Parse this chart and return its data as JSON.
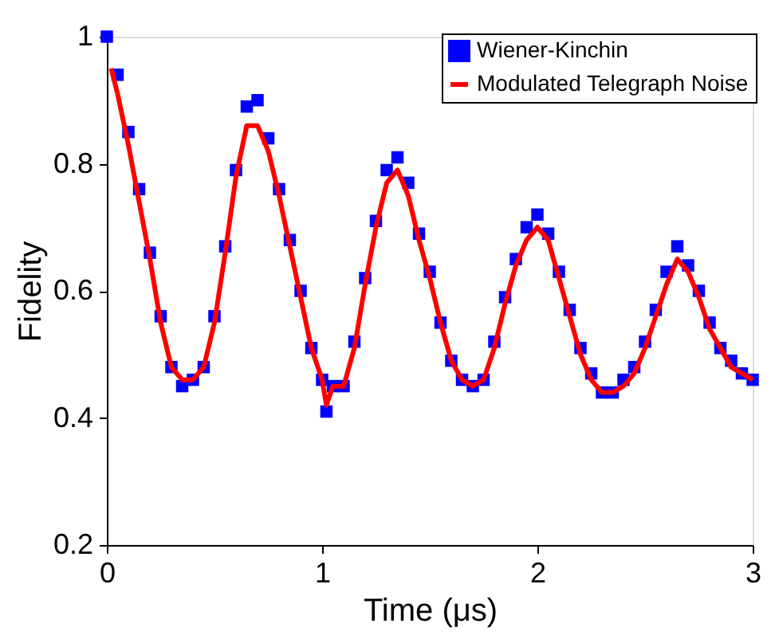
{
  "chart_data": {
    "type": "scatter",
    "xlabel": "Time (μs)",
    "ylabel": "Fidelity",
    "xlim": [
      0,
      3
    ],
    "ylim": [
      0.2,
      1
    ],
    "xticks": [
      0,
      1,
      2,
      3
    ],
    "yticks": [
      0.2,
      0.4,
      0.6,
      0.8,
      1
    ],
    "grid": false,
    "legend": "top right",
    "series": [
      {
        "name": "Wiener-Kinchin",
        "marker": "square",
        "color": "#0000ff",
        "x": [
          0.0,
          0.05,
          0.1,
          0.15,
          0.2,
          0.25,
          0.3,
          0.35,
          0.4,
          0.45,
          0.5,
          0.55,
          0.6,
          0.65,
          0.7,
          0.75,
          0.8,
          0.85,
          0.9,
          0.95,
          1.0,
          1.02,
          1.05,
          1.1,
          1.15,
          1.2,
          1.25,
          1.3,
          1.35,
          1.4,
          1.45,
          1.5,
          1.55,
          1.6,
          1.65,
          1.7,
          1.75,
          1.8,
          1.85,
          1.9,
          1.95,
          2.0,
          2.05,
          2.1,
          2.15,
          2.2,
          2.25,
          2.3,
          2.35,
          2.4,
          2.45,
          2.5,
          2.55,
          2.6,
          2.65,
          2.7,
          2.75,
          2.8,
          2.85,
          2.9,
          2.95,
          3.0
        ],
        "values": [
          1.0,
          0.94,
          0.85,
          0.76,
          0.66,
          0.56,
          0.48,
          0.45,
          0.46,
          0.48,
          0.56,
          0.67,
          0.79,
          0.89,
          0.9,
          0.84,
          0.76,
          0.68,
          0.6,
          0.51,
          0.46,
          0.41,
          0.45,
          0.45,
          0.52,
          0.62,
          0.71,
          0.79,
          0.81,
          0.77,
          0.69,
          0.63,
          0.55,
          0.49,
          0.46,
          0.45,
          0.46,
          0.52,
          0.59,
          0.65,
          0.7,
          0.72,
          0.69,
          0.63,
          0.57,
          0.51,
          0.47,
          0.44,
          0.44,
          0.46,
          0.48,
          0.52,
          0.57,
          0.63,
          0.67,
          0.64,
          0.6,
          0.55,
          0.51,
          0.49,
          0.47,
          0.46
        ]
      },
      {
        "name": "Modulated Telegraph Noise",
        "type": "line",
        "marker": "none",
        "line_style": "solid",
        "color": "#ff0000",
        "x": [
          0.02,
          0.05,
          0.1,
          0.15,
          0.2,
          0.25,
          0.3,
          0.35,
          0.4,
          0.45,
          0.5,
          0.55,
          0.6,
          0.65,
          0.7,
          0.75,
          0.8,
          0.85,
          0.9,
          0.95,
          1.0,
          1.02,
          1.05,
          1.1,
          1.15,
          1.2,
          1.25,
          1.3,
          1.35,
          1.4,
          1.45,
          1.5,
          1.55,
          1.6,
          1.65,
          1.7,
          1.75,
          1.8,
          1.85,
          1.9,
          1.95,
          2.0,
          2.05,
          2.1,
          2.15,
          2.2,
          2.25,
          2.3,
          2.35,
          2.4,
          2.45,
          2.5,
          2.55,
          2.6,
          2.65,
          2.7,
          2.75,
          2.8,
          2.85,
          2.9,
          2.95,
          3.0
        ],
        "values": [
          0.95,
          0.91,
          0.83,
          0.74,
          0.65,
          0.55,
          0.48,
          0.46,
          0.46,
          0.48,
          0.55,
          0.66,
          0.78,
          0.86,
          0.86,
          0.82,
          0.75,
          0.67,
          0.59,
          0.51,
          0.46,
          0.42,
          0.45,
          0.45,
          0.51,
          0.61,
          0.7,
          0.77,
          0.79,
          0.75,
          0.68,
          0.62,
          0.55,
          0.49,
          0.46,
          0.45,
          0.46,
          0.51,
          0.58,
          0.64,
          0.68,
          0.7,
          0.68,
          0.62,
          0.56,
          0.5,
          0.46,
          0.44,
          0.44,
          0.45,
          0.47,
          0.51,
          0.56,
          0.61,
          0.65,
          0.63,
          0.59,
          0.54,
          0.51,
          0.48,
          0.47,
          0.46
        ]
      }
    ]
  }
}
